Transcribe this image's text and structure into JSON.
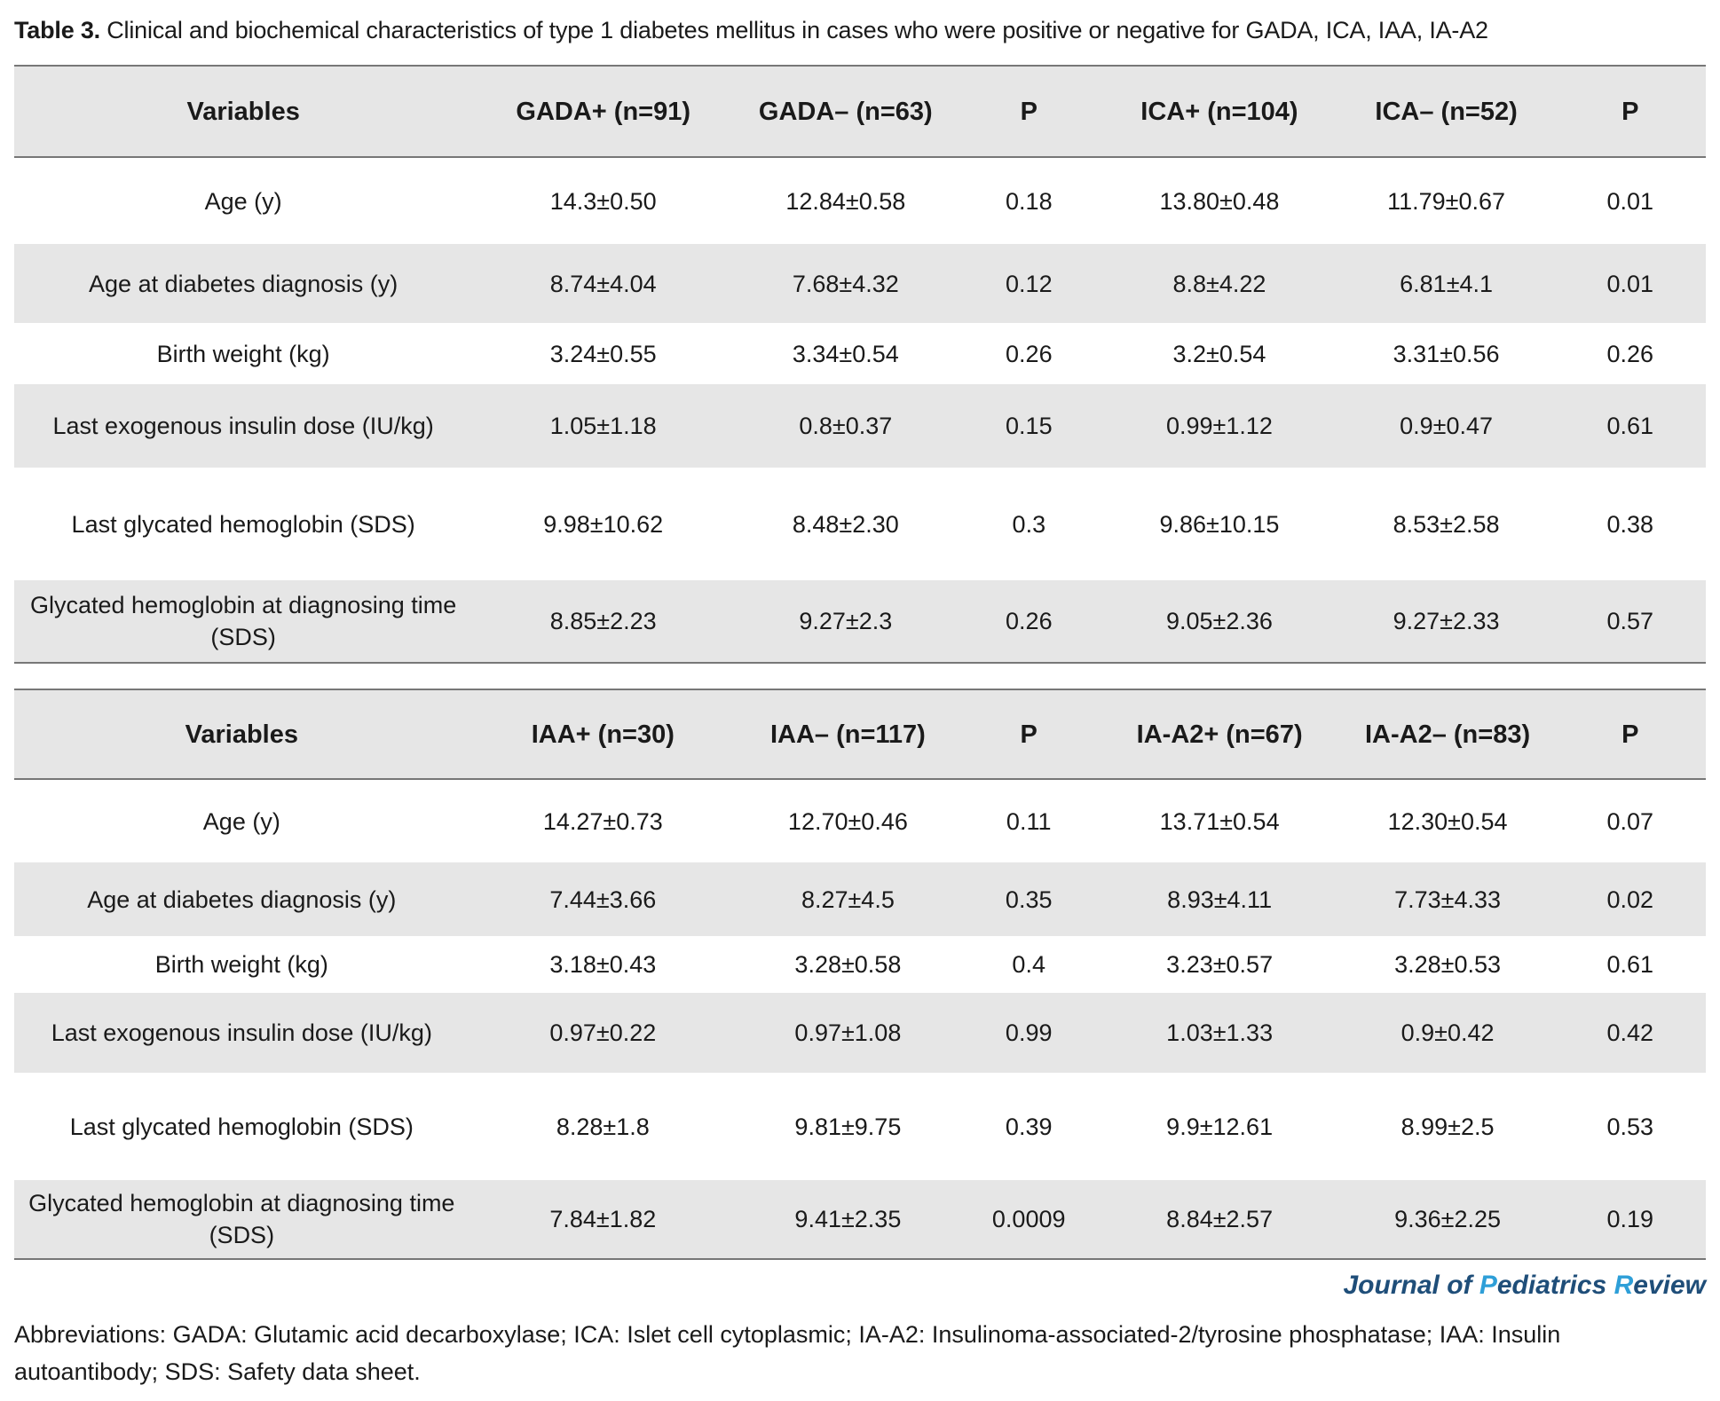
{
  "caption": {
    "lead": "Table 3.",
    "text": " Clinical and biochemical characteristics of type 1 diabetes mellitus in cases who were positive or negative for GADA, ICA, IAA, IA-A2"
  },
  "table1": {
    "headers": [
      "Variables",
      "GADA+ (n=91)",
      "GADA– (n=63)",
      "P",
      "ICA+ (n=104)",
      "ICA– (n=52)",
      "P"
    ],
    "rows": [
      {
        "label": "Age (y)",
        "values": [
          "14.3±0.50",
          "12.84±0.58",
          "0.18",
          "13.80±0.48",
          "11.79±0.67",
          "0.01"
        ]
      },
      {
        "label": "Age at diabetes diagnosis (y)",
        "values": [
          "8.74±4.04",
          "7.68±4.32",
          "0.12",
          "8.8±4.22",
          "6.81±4.1",
          "0.01"
        ]
      },
      {
        "label": "Birth weight (kg)",
        "values": [
          "3.24±0.55",
          "3.34±0.54",
          "0.26",
          "3.2±0.54",
          "3.31±0.56",
          "0.26"
        ]
      },
      {
        "label": "Last exogenous insulin dose (IU/kg)",
        "values": [
          "1.05±1.18",
          "0.8±0.37",
          "0.15",
          "0.99±1.12",
          "0.9±0.47",
          "0.61"
        ]
      },
      {
        "label": "Last glycated hemoglobin (SDS)",
        "values": [
          "9.98±10.62",
          "8.48±2.30",
          "0.3",
          "9.86±10.15",
          "8.53±2.58",
          "0.38"
        ]
      },
      {
        "label": "Glycated hemoglobin at diagnosing time (SDS)",
        "values": [
          "8.85±2.23",
          "9.27±2.3",
          "0.26",
          "9.05±2.36",
          "9.27±2.33",
          "0.57"
        ]
      }
    ]
  },
  "table2": {
    "headers": [
      "Variables",
      "IAA+ (n=30)",
      "IAA– (n=117)",
      "P",
      "IA-A2+ (n=67)",
      "IA-A2– (n=83)",
      "P"
    ],
    "rows": [
      {
        "label": "Age (y)",
        "values": [
          "14.27±0.73",
          "12.70±0.46",
          "0.11",
          "13.71±0.54",
          "12.30±0.54",
          "0.07"
        ]
      },
      {
        "label": "Age at diabetes diagnosis (y)",
        "values": [
          "7.44±3.66",
          "8.27±4.5",
          "0.35",
          "8.93±4.11",
          "7.73±4.33",
          "0.02"
        ]
      },
      {
        "label": "Birth weight (kg)",
        "values": [
          "3.18±0.43",
          "3.28±0.58",
          "0.4",
          "3.23±0.57",
          "3.28±0.53",
          "0.61"
        ]
      },
      {
        "label": "Last exogenous insulin dose (IU/kg)",
        "values": [
          "0.97±0.22",
          "0.97±1.08",
          "0.99",
          "1.03±1.33",
          "0.9±0.42",
          "0.42"
        ]
      },
      {
        "label": "Last glycated hemoglobin (SDS)",
        "values": [
          "8.28±1.8",
          "9.81±9.75",
          "0.39",
          "9.9±12.61",
          "8.99±2.5",
          "0.53"
        ]
      },
      {
        "label": "Glycated hemoglobin at diagnosing time (SDS)",
        "values": [
          "7.84±1.82",
          "9.41±2.35",
          "0.0009",
          "8.84±2.57",
          "9.36±2.25",
          "0.19"
        ]
      }
    ]
  },
  "journal": {
    "p1": "Journal of ",
    "p2": "P",
    "p3": "ediatrics ",
    "p4": "R",
    "p5": "eview"
  },
  "footnote": "Abbreviations: GADA: Glutamic acid decarboxylase; ICA: Islet cell cytoplasmic; IA-A2: Insulinoma-associated-2/tyrosine phosphatase; IAA: Insulin autoantibody; SDS: Safety data sheet."
}
